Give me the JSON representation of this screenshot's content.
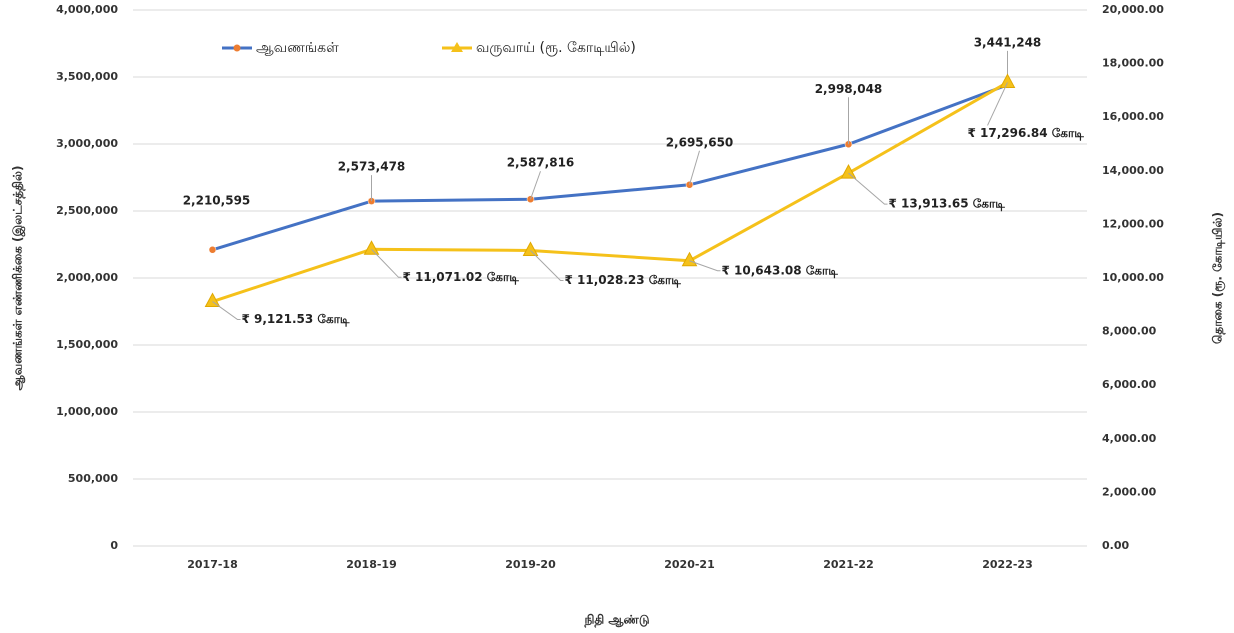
{
  "chart_data": {
    "type": "line",
    "categories": [
      "2017-18",
      "2018-19",
      "2019-20",
      "2020-21",
      "2021-22",
      "2022-23"
    ],
    "series": [
      {
        "name": "ஆவணங்கள்",
        "color": "#4472c4",
        "marker_color": "#ed7d31",
        "values": [
          2210595,
          2573478,
          2587816,
          2695650,
          2998048,
          3441248
        ],
        "value_labels": [
          "2,210,595",
          "2,573,478",
          "2,587,816",
          "2,695,650",
          "2,998,048",
          "3,441,248"
        ]
      },
      {
        "name": "வருவாய் (ரூ. கோடியில்)",
        "color": "#f5c11a",
        "axis": "y2",
        "values": [
          9121.53,
          11071.02,
          11028.23,
          10643.08,
          13913.65,
          17296.84
        ],
        "value_labels": [
          "₹ 9,121.53 கோடி",
          "₹ 11,071.02 கோடி",
          "₹ 11,028.23 கோடி",
          "₹ 10,643.08 கோடி",
          "₹ 13,913.65 கோடி",
          "₹ 17,296.84 கோடி"
        ]
      }
    ],
    "ylabel": "ஆவணங்கள் எண்ணிக்கை (இலட்சத்தில்)",
    "y2label": "தொகை (ரூ. கோடியில்)",
    "xlabel": "நிதி ஆண்டு",
    "ylim": [
      0,
      4000000
    ],
    "yticks": [
      {
        "value": 0,
        "label": "0"
      },
      {
        "value": 500000,
        "label": "500,000"
      },
      {
        "value": 1000000,
        "label": "1,000,000"
      },
      {
        "value": 1500000,
        "label": "1,500,000"
      },
      {
        "value": 2000000,
        "label": "2,000,000"
      },
      {
        "value": 2500000,
        "label": "2,500,000"
      },
      {
        "value": 3000000,
        "label": "3,000,000"
      },
      {
        "value": 3500000,
        "label": "3,500,000"
      },
      {
        "value": 4000000,
        "label": "4,000,000"
      }
    ],
    "y2lim": [
      0,
      20000
    ],
    "y2ticks": [
      {
        "value": 0,
        "label": "0.00"
      },
      {
        "value": 2000,
        "label": "2,000.00"
      },
      {
        "value": 4000,
        "label": "4,000.00"
      },
      {
        "value": 6000,
        "label": "6,000.00"
      },
      {
        "value": 8000,
        "label": "8,000.00"
      },
      {
        "value": 10000,
        "label": "10,000.00"
      },
      {
        "value": 12000,
        "label": "12,000.00"
      },
      {
        "value": 14000,
        "label": "14,000.00"
      },
      {
        "value": 16000,
        "label": "16,000.00"
      },
      {
        "value": 18000,
        "label": "18,000.00"
      },
      {
        "value": 20000,
        "label": "20,000.00"
      }
    ],
    "grid": true,
    "legend": "top-left"
  }
}
